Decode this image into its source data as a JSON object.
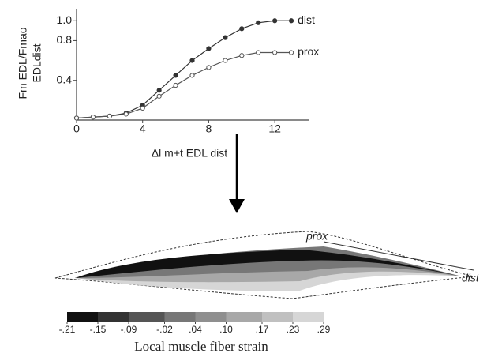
{
  "chart_data": {
    "type": "line",
    "ylabel": [
      "Fm EDL/Fmao",
      "EDLdist"
    ],
    "xlabel": "Δl m+t EDL dist",
    "x": [
      0,
      1,
      2,
      3,
      4,
      5,
      6,
      7,
      8,
      9,
      10,
      11,
      12,
      13
    ],
    "series": [
      {
        "name": "dist",
        "color": "#333333",
        "values": [
          0.02,
          0.03,
          0.04,
          0.07,
          0.15,
          0.3,
          0.45,
          0.6,
          0.72,
          0.83,
          0.92,
          0.98,
          1.0,
          1.0
        ]
      },
      {
        "name": "prox",
        "color": "#555555",
        "values": [
          0.02,
          0.03,
          0.04,
          0.06,
          0.12,
          0.24,
          0.35,
          0.45,
          0.53,
          0.6,
          0.65,
          0.68,
          0.68,
          0.68
        ]
      }
    ],
    "xlim": [
      0,
      14
    ],
    "ylim": [
      0,
      1.05
    ],
    "xticks": [
      0,
      4,
      8,
      12
    ],
    "yticks": [
      0.4,
      0.8,
      {
        "value": 1,
        "label": "1.0"
      }
    ],
    "grid": false
  },
  "strain_map": {
    "prox_label": "prox",
    "dist_label": "dist",
    "colorbar": {
      "title": "Local muscle fiber strain",
      "ticks": [
        {
          "value": -0.21,
          "label": "-.21"
        },
        {
          "value": -0.15,
          "label": "-.15"
        },
        {
          "value": -0.09,
          "label": "-.09"
        },
        {
          "value": -0.02,
          "label": "-.02"
        },
        {
          "value": 0.04,
          "label": ".04"
        },
        {
          "value": 0.1,
          "label": ".10"
        },
        {
          "value": 0.17,
          "label": ".17"
        },
        {
          "value": 0.23,
          "label": ".23"
        },
        {
          "value": 0.29,
          "label": ".29"
        }
      ],
      "colors": [
        "#111111",
        "#333333",
        "#555555",
        "#777777",
        "#8f8f8f",
        "#a8a8a8",
        "#c0c0c0",
        "#d6d6d6"
      ]
    }
  }
}
